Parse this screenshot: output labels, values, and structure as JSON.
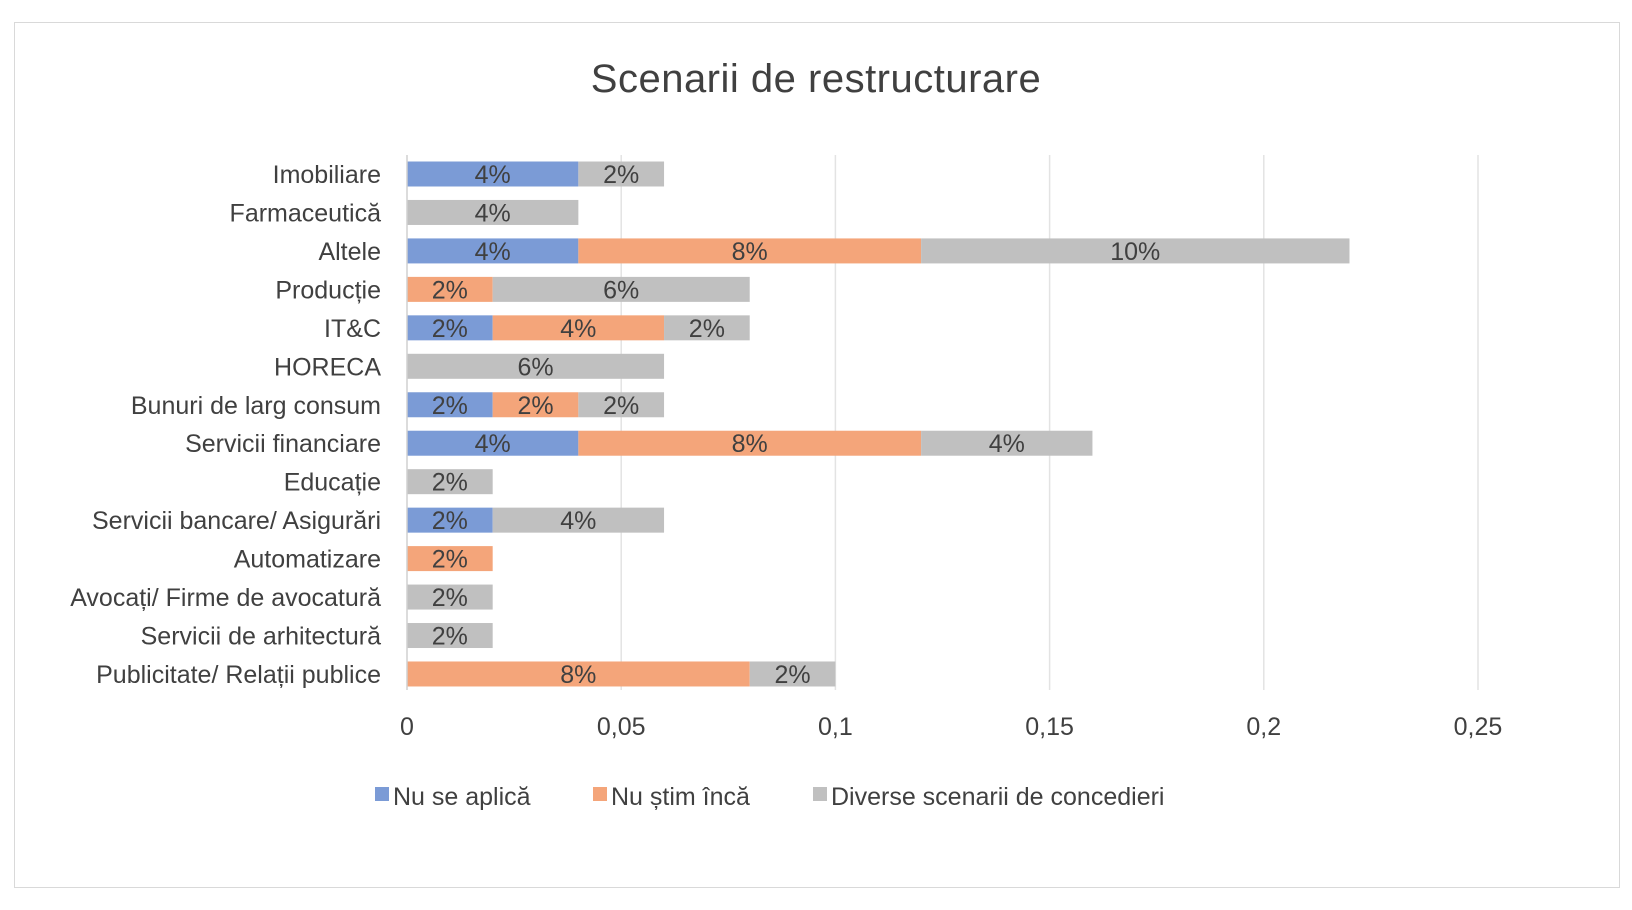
{
  "chart_data": {
    "type": "bar",
    "orientation": "horizontal",
    "stacked": true,
    "title": "Scenarii de restructurare",
    "xlim": [
      0,
      0.25
    ],
    "x_ticks": [
      0,
      0.05,
      0.1,
      0.15,
      0.2,
      0.25
    ],
    "x_tick_labels": [
      "0",
      "0,05",
      "0,1",
      "0,15",
      "0,2",
      "0,25"
    ],
    "grid": true,
    "legend_position": "bottom",
    "categories": [
      "Imobiliare",
      "Farmaceutică",
      "Altele",
      "Producție",
      "IT&C",
      "HORECA",
      "Bunuri de larg consum",
      "Servicii financiare",
      "Educație",
      "Servicii bancare/ Asigurări",
      "Automatizare",
      "Avocați/ Firme de avocatură",
      "Servicii de arhitectură",
      "Publicitate/ Relații publice"
    ],
    "series": [
      {
        "name": "Nu se aplică",
        "color": "#7b9bd6",
        "values": [
          0.04,
          0,
          0.04,
          0,
          0.02,
          0,
          0.02,
          0.04,
          0,
          0.02,
          0,
          0,
          0,
          0
        ],
        "labels": [
          "4%",
          "",
          "4%",
          "",
          "2%",
          "",
          "2%",
          "4%",
          "",
          "2%",
          "",
          "",
          "",
          ""
        ]
      },
      {
        "name": "Nu știm încă",
        "color": "#f4a57a",
        "values": [
          0,
          0,
          0.08,
          0.02,
          0.04,
          0,
          0.02,
          0.08,
          0,
          0,
          0.02,
          0,
          0,
          0.08
        ],
        "labels": [
          "",
          "",
          "8%",
          "2%",
          "4%",
          "",
          "2%",
          "8%",
          "",
          "",
          "2%",
          "",
          "",
          "8%"
        ]
      },
      {
        "name": "Diverse scenarii de concedieri",
        "color": "#c0c0c0",
        "values": [
          0.02,
          0.04,
          0.1,
          0.06,
          0.02,
          0.06,
          0.02,
          0.04,
          0.02,
          0.04,
          0,
          0.02,
          0.02,
          0.02
        ],
        "labels": [
          "2%",
          "4%",
          "10%",
          "6%",
          "2%",
          "6%",
          "2%",
          "4%",
          "2%",
          "4%",
          "",
          "2%",
          "2%",
          "2%"
        ]
      }
    ]
  }
}
